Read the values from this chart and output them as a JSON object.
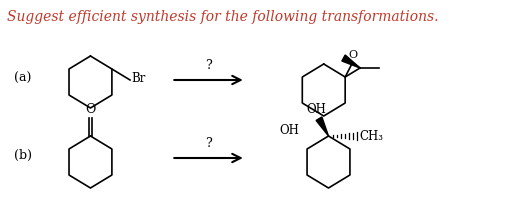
{
  "title": "Suggest efficient synthesis for the following transformations.",
  "title_color": "#c0392b",
  "title_fontsize": 10.0,
  "bg_color": "#ffffff",
  "label_a": "(a)",
  "label_b": "(b)",
  "question_mark": "?",
  "br_label": "Br",
  "oh_label": "OH",
  "ch3_label": "CH₃",
  "o_label": "O",
  "text_color": "#000000"
}
